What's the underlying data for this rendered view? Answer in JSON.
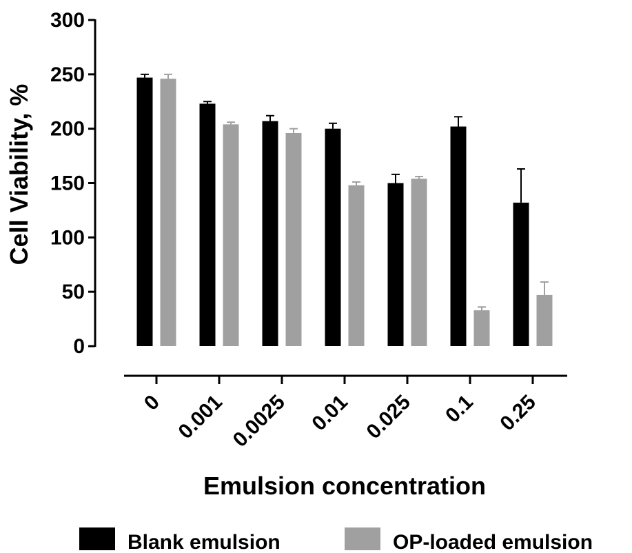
{
  "chart_data": {
    "type": "bar",
    "title": "",
    "xlabel": "Emulsion concentration",
    "ylabel": "Cell Viability, %",
    "ylim": [
      0,
      300
    ],
    "yticks": [
      0,
      50,
      100,
      150,
      200,
      250,
      300
    ],
    "categories": [
      "0",
      "0.001",
      "0.0025",
      "0.01",
      "0.025",
      "0.1",
      "0.25"
    ],
    "series": [
      {
        "name": "Blank emulsion",
        "color": "#000000",
        "values": [
          247,
          223,
          207,
          200,
          150,
          202,
          132
        ],
        "errors": [
          3,
          2,
          5,
          5,
          8,
          9,
          31
        ]
      },
      {
        "name": "OP-loaded emulsion",
        "color": "#a0a0a0",
        "values": [
          246,
          204,
          196,
          148,
          154,
          33,
          47
        ],
        "errors": [
          4,
          2,
          4,
          3,
          2,
          3,
          12
        ]
      }
    ],
    "grid": false,
    "legend_position": "bottom"
  }
}
